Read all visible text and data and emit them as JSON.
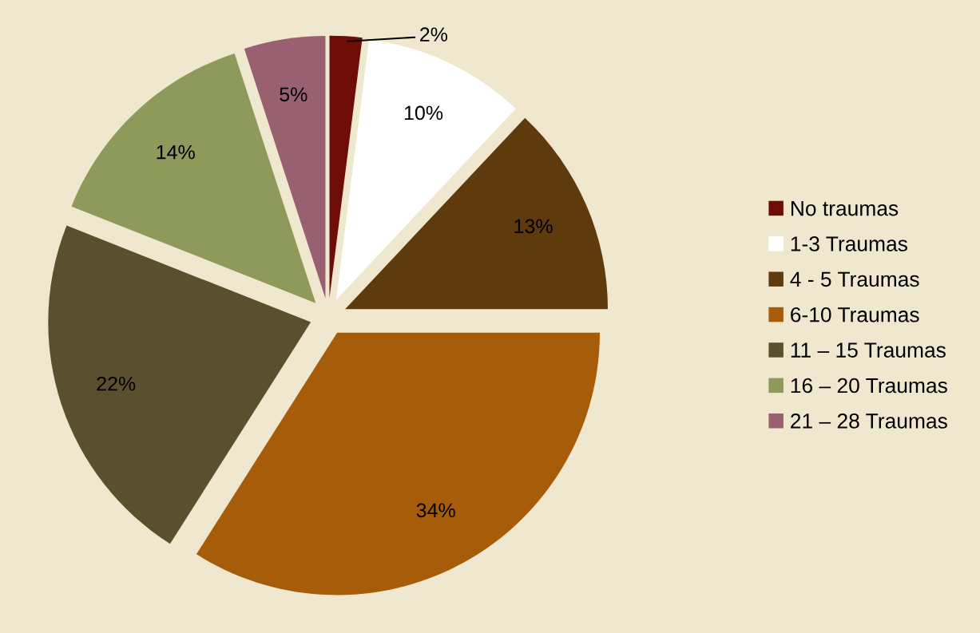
{
  "chart_data": {
    "type": "pie",
    "categories": [
      "No traumas",
      "1-3 Traumas",
      "4 - 5 Traumas",
      "6-10 Traumas",
      "11 – 15 Traumas",
      "16 – 20 Traumas",
      "21 – 28 Traumas"
    ],
    "values": [
      2,
      10,
      13,
      34,
      22,
      14,
      5
    ],
    "value_labels": [
      "2%",
      "10%",
      "13%",
      "34%",
      "22%",
      "14%",
      "5%"
    ],
    "colors": [
      "#6e0c06",
      "#ffffff",
      "#5e3a0c",
      "#a65c08",
      "#5a5030",
      "#8e9a5c",
      "#986070"
    ],
    "legend": "right"
  }
}
